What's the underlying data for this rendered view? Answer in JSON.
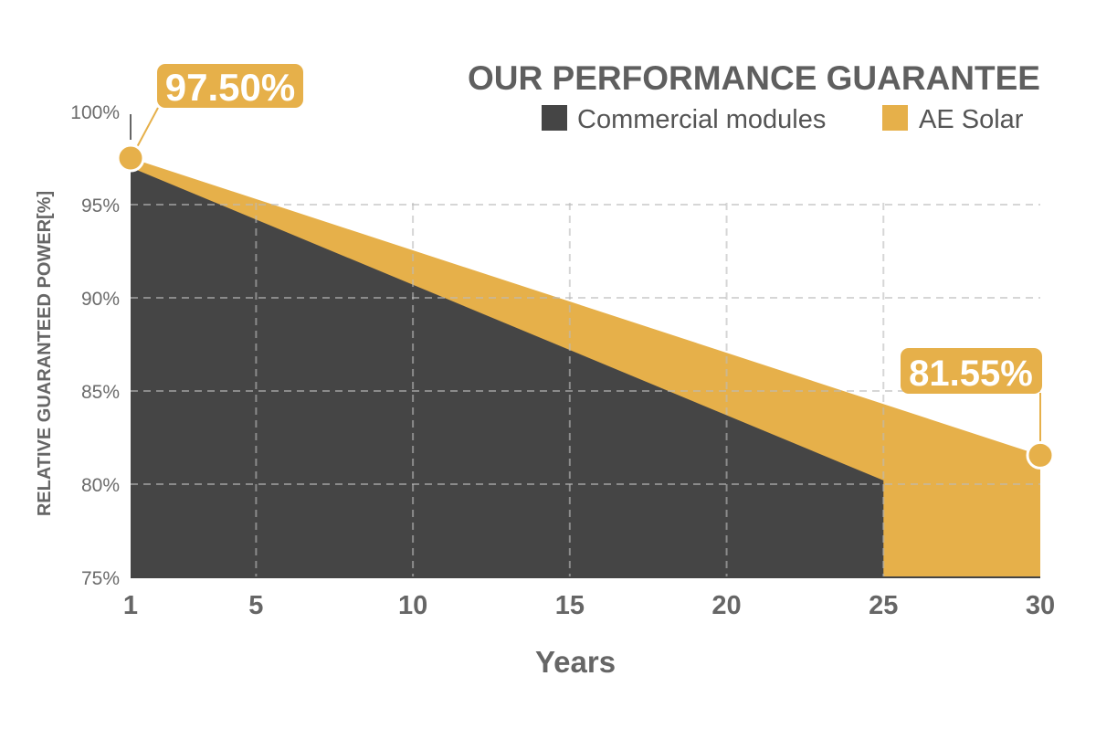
{
  "chart_data": {
    "type": "area",
    "title": "OUR PERFORMANCE GUARANTEE",
    "xlabel": "Years",
    "ylabel": "RELATIVE GUARANTEED POWER[%]",
    "x_ticks": [
      "1",
      "5",
      "10",
      "15",
      "20",
      "25",
      "30"
    ],
    "y_ticks": [
      "75%",
      "80%",
      "85%",
      "90%",
      "95%",
      "100%"
    ],
    "xlim": [
      1,
      30
    ],
    "ylim": [
      75,
      100
    ],
    "grid": true,
    "legend_position": "top-right",
    "series": [
      {
        "name": "AE Solar",
        "color": "#e6b04a",
        "x": [
          1,
          30
        ],
        "y": [
          97.5,
          81.55
        ]
      },
      {
        "name": "Commercial modules",
        "color": "#454545",
        "x": [
          1,
          25
        ],
        "y": [
          97.0,
          80.2
        ]
      }
    ],
    "annotations": [
      {
        "text": "97.50%",
        "x": 1,
        "y": 97.5
      },
      {
        "text": "81.55%",
        "x": 30,
        "y": 81.55
      }
    ]
  }
}
